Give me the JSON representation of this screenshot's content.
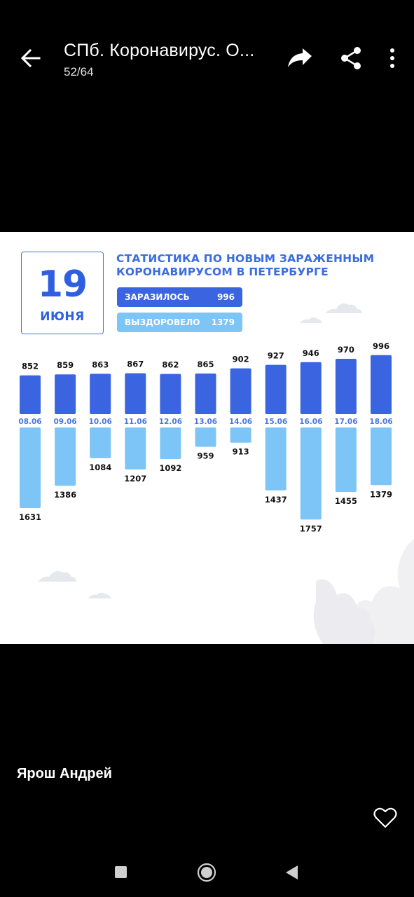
{
  "header": {
    "title": "СПб. Коронавирус. О...",
    "counter": "52/64",
    "icons": {
      "back": "arrow-left-icon",
      "forward": "share-forward-icon",
      "share": "share-nodes-icon",
      "more": "more-vertical-icon"
    }
  },
  "infographic": {
    "date_day": "19",
    "date_month": "ИЮНЯ",
    "title_line1": "СТАТИСТИКА ПО НОВЫМ ЗАРАЖЕННЫМ",
    "title_line2": "КОРОНАВИРУСОМ В ПЕТЕРБУРГЕ",
    "infected_label": "ЗАРАЗИЛОСЬ",
    "infected_value": "996",
    "recovered_label": "ВЫЗДОРОВЕЛО",
    "recovered_value": "1379",
    "colors": {
      "infected": "#3b64e0",
      "recovered": "#7dc5f7",
      "accent": "#3b6de0"
    }
  },
  "chart_data": {
    "type": "bar",
    "categories": [
      "08.06",
      "09.06",
      "10.06",
      "11.06",
      "12.06",
      "13.06",
      "14.06",
      "15.06",
      "16.06",
      "17.06",
      "18.06"
    ],
    "series": [
      {
        "name": "ЗАРАЗИЛОСЬ",
        "values": [
          852,
          859,
          863,
          867,
          862,
          865,
          902,
          927,
          946,
          970,
          996
        ]
      },
      {
        "name": "ВЫЗДОРОВЕЛО",
        "values": [
          1631,
          1386,
          1084,
          1207,
          1092,
          959,
          913,
          1437,
          1757,
          1455,
          1379
        ]
      }
    ]
  },
  "footer": {
    "author": "Ярош Андрей",
    "like_icon": "heart-outline-icon"
  },
  "navbar": {
    "icons": [
      "recents-square-icon",
      "home-circle-icon",
      "back-triangle-icon"
    ]
  }
}
